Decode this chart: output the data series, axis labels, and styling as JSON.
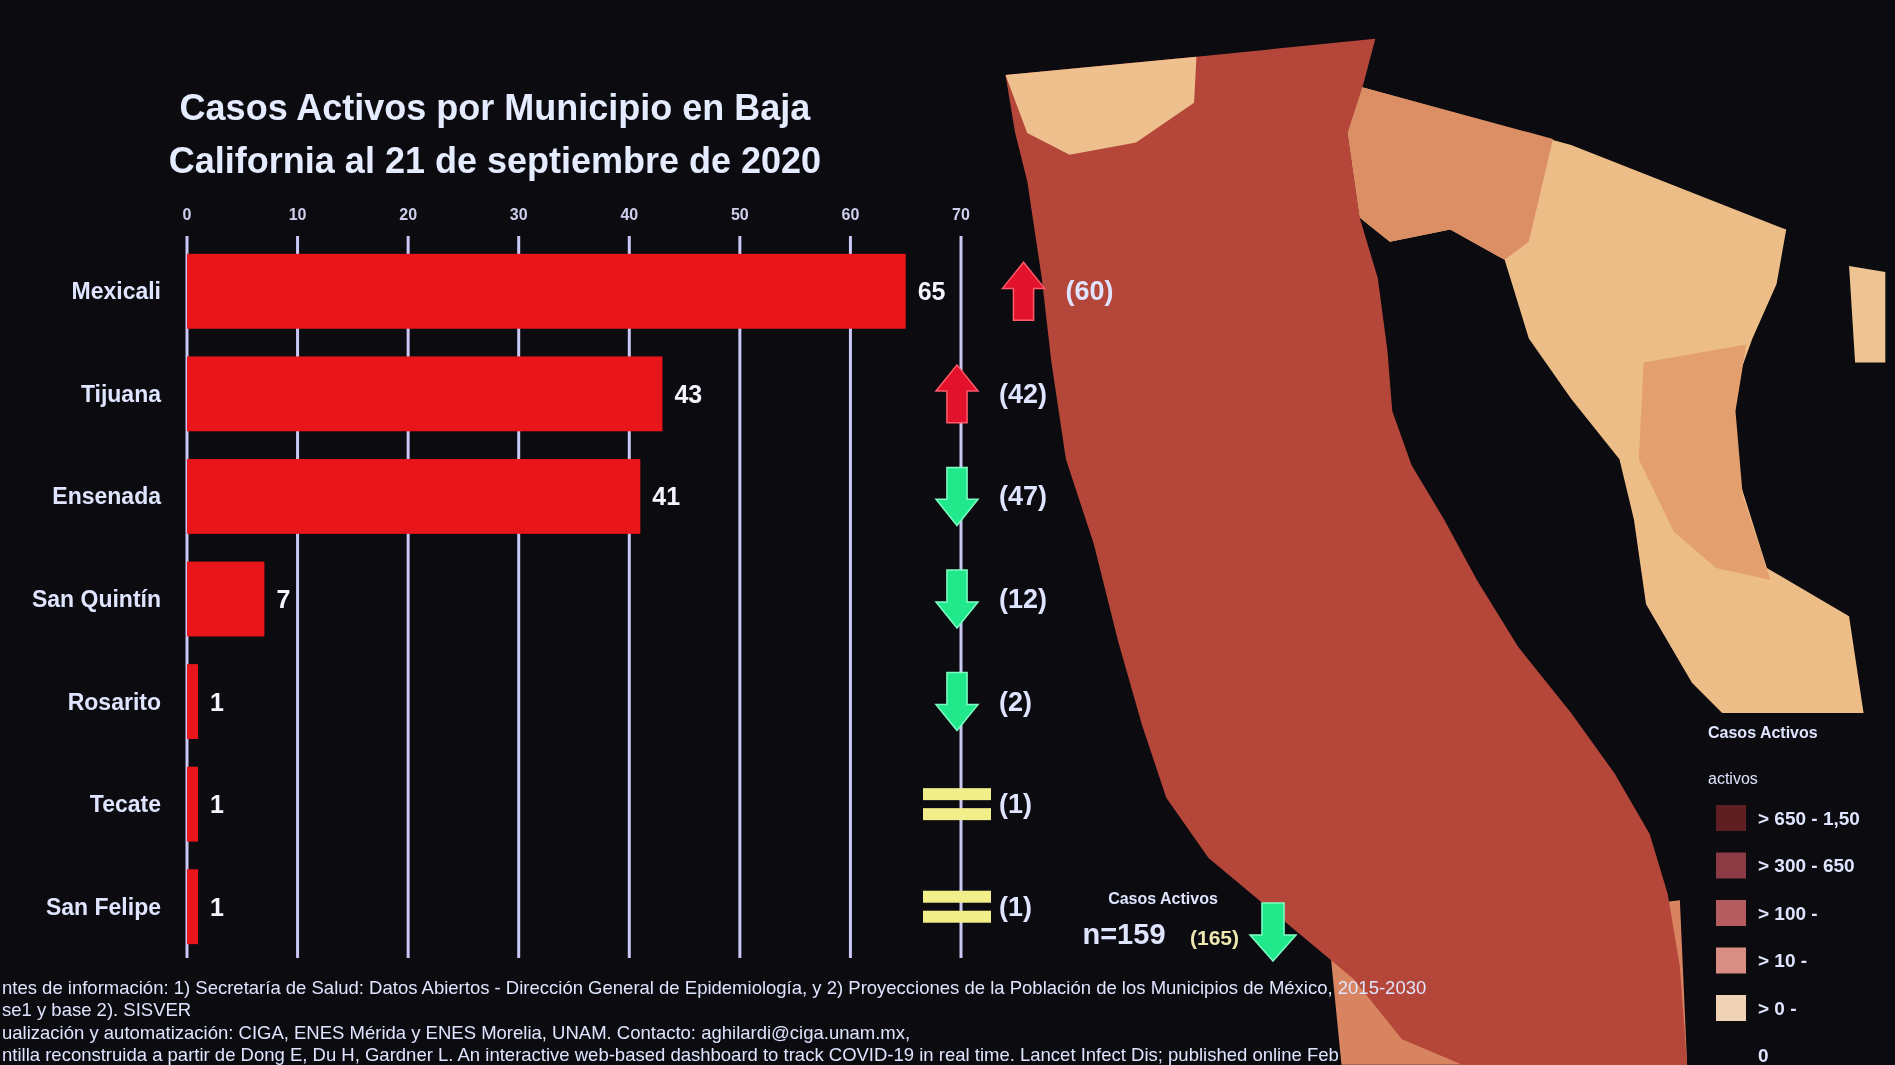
{
  "chart_data": {
    "type": "bar",
    "orientation": "horizontal",
    "title": "Casos Activos por Municipio en Baja California al 21 de septiembre de 2020",
    "categories": [
      "Mexicali",
      "Tijuana",
      "Ensenada",
      "San Quintín",
      "Rosarito",
      "Tecate",
      "San Felipe"
    ],
    "values": [
      65,
      43,
      41,
      7,
      1,
      1,
      1
    ],
    "color": "#e8151b",
    "xlim": [
      0,
      70
    ],
    "xticks": [
      0,
      10,
      20,
      30,
      40,
      50,
      60,
      70
    ],
    "grid": "x",
    "data_labels": true,
    "annotations": [
      "(60)",
      "(42)",
      "(47)",
      "(12)",
      "(2)",
      "(1)",
      "(1)",
      "Casos Activos",
      "n=159",
      "(165)",
      "ntes de información: 1) Secretaría de Salud: Datos Abiertos - Dirección General de Epidemiología, y 2) Proyecciones de la Población de los Municipios de México, 2015-2030",
      "se1 y base 2). SISVER",
      "ualización y automatización: CIGA, ENES Mérida y ENES Morelia, UNAM. Contacto: aghilardi@ciga.unam.mx,",
      "ntilla reconstruida a partir de Dong E, Du H, Gardner L. An interactive web-based dashboard to track COVID-19 in real time. Lancet Infect Dis; published online Feb",
      "Casos Activos",
      "activos",
      "> 650 - 1,50",
      "> 300 - 650",
      "> 100 -",
      "> 10 -",
      "> 0 -",
      "0"
    ]
  }
}
